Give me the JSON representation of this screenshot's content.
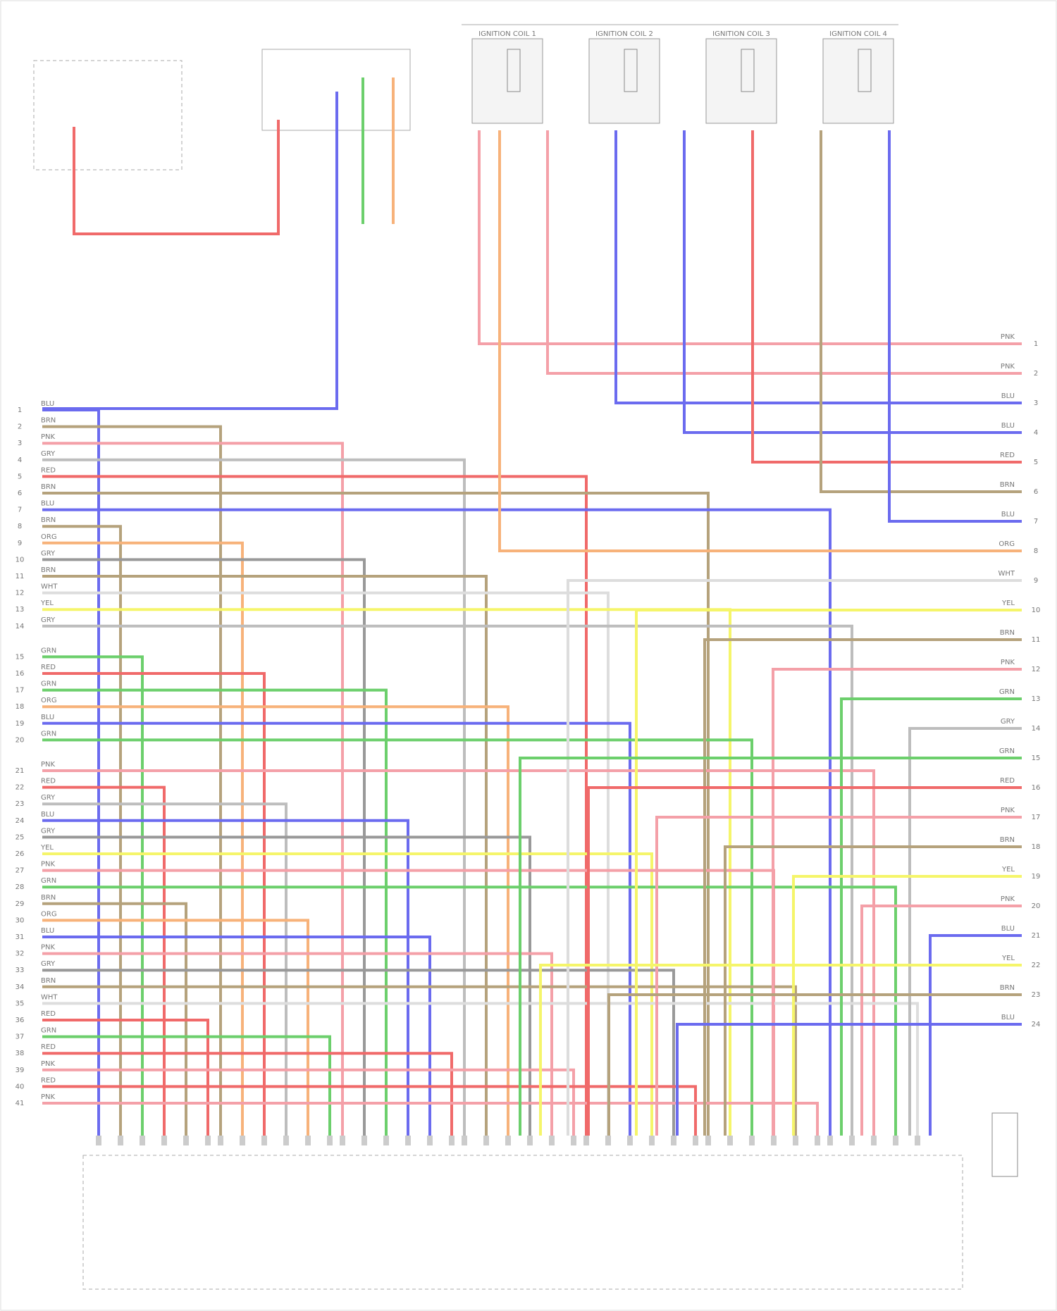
{
  "coils": [
    {
      "label": "IGNITION COIL 1"
    },
    {
      "label": "IGNITION COIL 2"
    },
    {
      "label": "IGNITION COIL 3"
    },
    {
      "label": "IGNITION COIL 4"
    }
  ],
  "left_wires": [
    {
      "pin": 1,
      "label": "BLU",
      "color": "#6b6bef"
    },
    {
      "pin": 2,
      "label": "BRN",
      "color": "#b5a27c"
    },
    {
      "pin": 3,
      "label": "PNK",
      "color": "#f4a0a8"
    },
    {
      "pin": 4,
      "label": "GRY",
      "color": "#bdbdbd"
    },
    {
      "pin": 5,
      "label": "RED",
      "color": "#f06a6a"
    },
    {
      "pin": 6,
      "label": "BRN",
      "color": "#b5a27c"
    },
    {
      "pin": 7,
      "label": "BLU",
      "color": "#6b6bef"
    },
    {
      "pin": 8,
      "label": "BRN",
      "color": "#b5a27c"
    },
    {
      "pin": 9,
      "label": "ORG",
      "color": "#f7b27a"
    },
    {
      "pin": 10,
      "label": "GRY",
      "color": "#999999"
    },
    {
      "pin": 11,
      "label": "BRN",
      "color": "#b5a27c"
    },
    {
      "pin": 12,
      "label": "WHT",
      "color": "#dddddd"
    },
    {
      "pin": 13,
      "label": "YEL",
      "color": "#f5f56a"
    },
    {
      "pin": 14,
      "label": "GRY",
      "color": "#bdbdbd"
    },
    {
      "pin": 15,
      "label": "GRN",
      "color": "#6ccf6c"
    },
    {
      "pin": 16,
      "label": "RED",
      "color": "#f06a6a"
    },
    {
      "pin": 17,
      "label": "GRN",
      "color": "#6ccf6c"
    },
    {
      "pin": 18,
      "label": "ORG",
      "color": "#f7b27a"
    },
    {
      "pin": 19,
      "label": "BLU",
      "color": "#6b6bef"
    },
    {
      "pin": 20,
      "label": "GRN",
      "color": "#6ccf6c"
    },
    {
      "pin": 21,
      "label": "PNK",
      "color": "#f4a0a8"
    },
    {
      "pin": 22,
      "label": "RED",
      "color": "#f06a6a"
    },
    {
      "pin": 23,
      "label": "GRY",
      "color": "#bdbdbd"
    },
    {
      "pin": 24,
      "label": "BLU",
      "color": "#6b6bef"
    },
    {
      "pin": 25,
      "label": "GRY",
      "color": "#999999"
    },
    {
      "pin": 26,
      "label": "YEL",
      "color": "#f5f56a"
    },
    {
      "pin": 27,
      "label": "PNK",
      "color": "#f4a0a8"
    },
    {
      "pin": 28,
      "label": "GRN",
      "color": "#6ccf6c"
    },
    {
      "pin": 29,
      "label": "BRN",
      "color": "#b5a27c"
    },
    {
      "pin": 30,
      "label": "ORG",
      "color": "#f7b27a"
    },
    {
      "pin": 31,
      "label": "BLU",
      "color": "#6b6bef"
    },
    {
      "pin": 32,
      "label": "PNK",
      "color": "#f4a0a8"
    },
    {
      "pin": 33,
      "label": "GRY",
      "color": "#999999"
    },
    {
      "pin": 34,
      "label": "BRN",
      "color": "#b5a27c"
    },
    {
      "pin": 35,
      "label": "WHT",
      "color": "#dddddd"
    },
    {
      "pin": 36,
      "label": "RED",
      "color": "#f06a6a"
    },
    {
      "pin": 37,
      "label": "GRN",
      "color": "#6ccf6c"
    },
    {
      "pin": 38,
      "label": "RED",
      "color": "#f06a6a"
    },
    {
      "pin": 39,
      "label": "PNK",
      "color": "#f4a0a8"
    },
    {
      "pin": 40,
      "label": "RED",
      "color": "#f06a6a"
    },
    {
      "pin": 41,
      "label": "PNK",
      "color": "#f4a0a8"
    }
  ],
  "right_wires": [
    {
      "pin": 1,
      "label": "PNK",
      "color": "#f4a0a8"
    },
    {
      "pin": 2,
      "label": "PNK",
      "color": "#f4a0a8"
    },
    {
      "pin": 3,
      "label": "BLU",
      "color": "#6b6bef"
    },
    {
      "pin": 4,
      "label": "BLU",
      "color": "#6b6bef"
    },
    {
      "pin": 5,
      "label": "RED",
      "color": "#f06a6a"
    },
    {
      "pin": 6,
      "label": "BRN",
      "color": "#b5a27c"
    },
    {
      "pin": 7,
      "label": "BLU",
      "color": "#6b6bef"
    },
    {
      "pin": 8,
      "label": "ORG",
      "color": "#f7b27a"
    },
    {
      "pin": 9,
      "label": "WHT",
      "color": "#dddddd"
    },
    {
      "pin": 10,
      "label": "YEL",
      "color": "#f5f56a"
    },
    {
      "pin": 11,
      "label": "BRN",
      "color": "#b5a27c"
    },
    {
      "pin": 12,
      "label": "PNK",
      "color": "#f4a0a8"
    },
    {
      "pin": 13,
      "label": "GRN",
      "color": "#6ccf6c"
    },
    {
      "pin": 14,
      "label": "GRY",
      "color": "#bdbdbd"
    },
    {
      "pin": 15,
      "label": "GRN",
      "color": "#6ccf6c"
    },
    {
      "pin": 16,
      "label": "RED",
      "color": "#f06a6a"
    },
    {
      "pin": 17,
      "label": "PNK",
      "color": "#f4a0a8"
    },
    {
      "pin": 18,
      "label": "BRN",
      "color": "#b5a27c"
    },
    {
      "pin": 19,
      "label": "YEL",
      "color": "#f5f56a"
    },
    {
      "pin": 20,
      "label": "PNK",
      "color": "#f4a0a8"
    },
    {
      "pin": 21,
      "label": "BLU",
      "color": "#6b6bef"
    },
    {
      "pin": 22,
      "label": "YEL",
      "color": "#f5f56a"
    },
    {
      "pin": 23,
      "label": "BRN",
      "color": "#b5a27c"
    },
    {
      "pin": 24,
      "label": "BLU",
      "color": "#6b6bef"
    }
  ]
}
